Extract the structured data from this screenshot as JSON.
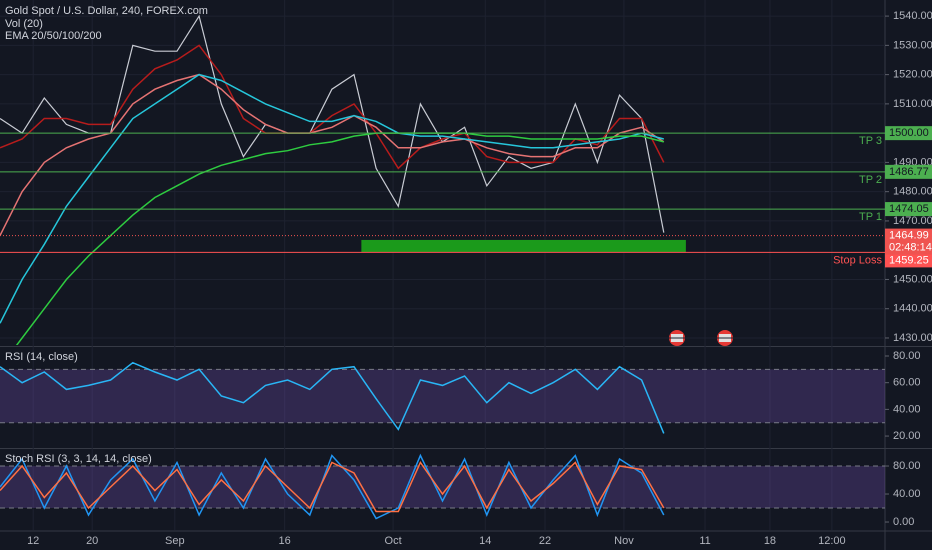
{
  "chart_data": [
    {
      "type": "line",
      "title": "Gold Spot / U.S. Dollar, 240, FOREX.com",
      "indicators": [
        "Vol (20)",
        "EMA 20/50/100/200"
      ],
      "x": [
        0,
        3,
        6,
        9,
        12,
        15,
        18,
        21,
        24,
        27,
        30,
        33,
        36,
        39,
        42,
        45,
        48,
        51,
        54,
        57,
        60,
        63,
        66,
        69,
        72,
        75,
        78,
        81,
        84,
        87,
        90
      ],
      "xlim": [
        0,
        120
      ],
      "xticks": [
        {
          "value": 4.5,
          "label": "12"
        },
        {
          "value": 12.5,
          "label": "20"
        },
        {
          "value": 23.7,
          "label": "Sep"
        },
        {
          "value": 38.6,
          "label": "16"
        },
        {
          "value": 53.3,
          "label": "Oct"
        },
        {
          "value": 65.8,
          "label": "14"
        },
        {
          "value": 73.9,
          "label": "22"
        },
        {
          "value": 84.6,
          "label": "Nov"
        },
        {
          "value": 95.6,
          "label": "11"
        },
        {
          "value": 104.4,
          "label": "18"
        },
        {
          "value": 112.8,
          "label": "12:00"
        }
      ],
      "ylim": [
        1427.6,
        1545.5
      ],
      "yticks": [
        {
          "value": 1430,
          "label": "1430.00"
        },
        {
          "value": 1440,
          "label": "1440.00"
        },
        {
          "value": 1450,
          "label": "1450.00"
        },
        {
          "value": 1470,
          "label": "1470.00"
        },
        {
          "value": 1480,
          "label": "1480.00"
        },
        {
          "value": 1490,
          "label": "1490.00"
        },
        {
          "value": 1510,
          "label": "1510.00"
        },
        {
          "value": 1520,
          "label": "1520.00"
        },
        {
          "value": 1530,
          "label": "1530.00"
        },
        {
          "value": 1540,
          "label": "1540.00"
        }
      ],
      "series": [
        {
          "color": "#c9ccd4",
          "values": [
            1505,
            1500,
            1512,
            1503,
            1500,
            1500,
            1530,
            1528,
            1528,
            1540,
            1510,
            1492,
            1503,
            1500,
            1500,
            1515,
            1520,
            1488,
            1475,
            1510,
            1497,
            1502,
            1482,
            1492,
            1488,
            1490,
            1510,
            1490,
            1513,
            1505,
            1466
          ]
        },
        {
          "color": "#b71c1c",
          "values": [
            1495,
            1498,
            1505,
            1505,
            1503,
            1503,
            1515,
            1522,
            1525,
            1530,
            1520,
            1505,
            1500,
            1500,
            1500,
            1506,
            1510,
            1500,
            1488,
            1495,
            1498,
            1500,
            1492,
            1490,
            1490,
            1490,
            1498,
            1496,
            1505,
            1505,
            1490
          ]
        },
        {
          "color": "#e57373",
          "values": [
            1465,
            1480,
            1490,
            1495,
            1498,
            1500,
            1510,
            1515,
            1518,
            1520,
            1515,
            1508,
            1503,
            1500,
            1500,
            1502,
            1506,
            1502,
            1495,
            1495,
            1497,
            1498,
            1495,
            1493,
            1492,
            1492,
            1495,
            1495,
            1500,
            1502,
            1497
          ]
        },
        {
          "color": "#26c6da",
          "values": [
            1435,
            1450,
            1462,
            1475,
            1485,
            1495,
            1505,
            1510,
            1515,
            1520,
            1518,
            1514,
            1510,
            1507,
            1504,
            1504,
            1506,
            1504,
            1500,
            1499,
            1499,
            1498,
            1497,
            1496,
            1495,
            1495,
            1496,
            1497,
            1498,
            1500,
            1498
          ]
        },
        {
          "color": "#2ecc40",
          "values": [
            1420,
            1430,
            1440,
            1450,
            1458,
            1465,
            1472,
            1478,
            1482,
            1486,
            1489,
            1491,
            1493,
            1494,
            1496,
            1497,
            1499,
            1500,
            1500,
            1500,
            1500,
            1500,
            1499,
            1499,
            1498,
            1498,
            1498,
            1498,
            1499,
            1499,
            1497
          ]
        }
      ],
      "levels": [
        {
          "name": "TP 3",
          "value": 1500,
          "label": "1500.00",
          "color": "#4caf50"
        },
        {
          "name": "TP 2",
          "value": 1486.77,
          "label": "1486.77",
          "color": "#4caf50"
        },
        {
          "name": "TP 1",
          "value": 1474.05,
          "label": "1474.05",
          "color": "#4caf50"
        },
        {
          "name": "Stop Loss",
          "value": 1459.25,
          "label": "1459.25",
          "color": "#ff5252"
        }
      ],
      "last": {
        "value": 1464.99,
        "label": "1464.99",
        "countdown": "02:48:14",
        "color": "#ef5350"
      },
      "zone": {
        "y": [
          1459.25,
          1463.5
        ],
        "x": [
          49,
          93
        ],
        "color": "#1b9a1b"
      }
    },
    {
      "type": "line",
      "title": "RSI (14, close)",
      "ylim": [
        11.8,
        86
      ],
      "yticks": [
        {
          "value": 20,
          "label": "20.00"
        },
        {
          "value": 40,
          "label": "40.00"
        },
        {
          "value": 60,
          "label": "60.00"
        },
        {
          "value": 80,
          "label": "80.00"
        }
      ],
      "band": [
        30,
        70
      ],
      "series": [
        {
          "color": "#29b6f6",
          "values": [
            72,
            60,
            68,
            55,
            58,
            62,
            75,
            68,
            62,
            70,
            50,
            45,
            58,
            62,
            55,
            70,
            72,
            48,
            25,
            62,
            58,
            65,
            45,
            60,
            52,
            60,
            70,
            55,
            72,
            62,
            22
          ]
        }
      ]
    },
    {
      "type": "line",
      "title": "Stoch RSI (3, 3, 14, 14, close)",
      "ylim": [
        -11.4,
        102.9
      ],
      "yticks": [
        {
          "value": 0,
          "label": "0.00"
        },
        {
          "value": 40,
          "label": "40.00"
        },
        {
          "value": 80,
          "label": "80.00"
        }
      ],
      "band": [
        20,
        80
      ],
      "series": [
        {
          "color": "#2196f3",
          "values": [
            50,
            90,
            20,
            80,
            10,
            60,
            90,
            30,
            85,
            10,
            70,
            20,
            90,
            40,
            10,
            95,
            60,
            5,
            20,
            95,
            30,
            90,
            10,
            85,
            20,
            60,
            95,
            10,
            90,
            70,
            10
          ]
        },
        {
          "color": "#ff7043",
          "values": [
            45,
            80,
            35,
            70,
            20,
            50,
            80,
            45,
            75,
            25,
            60,
            30,
            80,
            50,
            20,
            85,
            70,
            15,
            15,
            85,
            40,
            80,
            20,
            75,
            30,
            55,
            85,
            25,
            80,
            75,
            20
          ]
        }
      ]
    }
  ]
}
